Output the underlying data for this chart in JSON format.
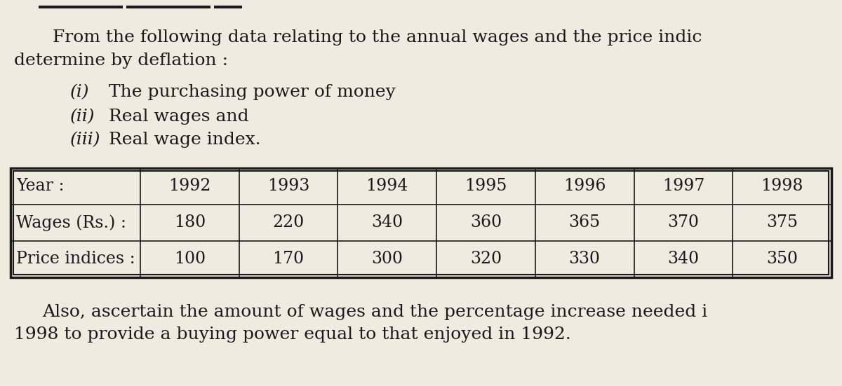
{
  "background_color": "#f0ebe0",
  "text_color": "#1a1a1a",
  "paragraph1_line1": "From the following data relating to the annual wages and the price indic",
  "paragraph1_line2": "determine by deflation :",
  "item_numerals": [
    "(i)",
    "(ii)",
    "(iii)"
  ],
  "item_texts": [
    "  The purchasing power of money",
    "  Real wages and",
    "  Real wage index."
  ],
  "table_headers": [
    "Year :",
    "Wages (Rs.) :",
    "Price indices :"
  ],
  "table_years": [
    "1992",
    "1993",
    "1994",
    "1995",
    "1996",
    "1997",
    "1998"
  ],
  "table_wages": [
    "180",
    "220",
    "340",
    "360",
    "365",
    "370",
    "375"
  ],
  "table_prices": [
    "100",
    "170",
    "300",
    "320",
    "330",
    "340",
    "350"
  ],
  "footer_line1": "Also, ascertain the amount of wages and the percentage increase needed i",
  "footer_line2": "1998 to provide a buying power equal to that enjoyed in 1992.",
  "font_size_body": 18,
  "font_size_table": 17,
  "font_family": "DejaVu Serif"
}
